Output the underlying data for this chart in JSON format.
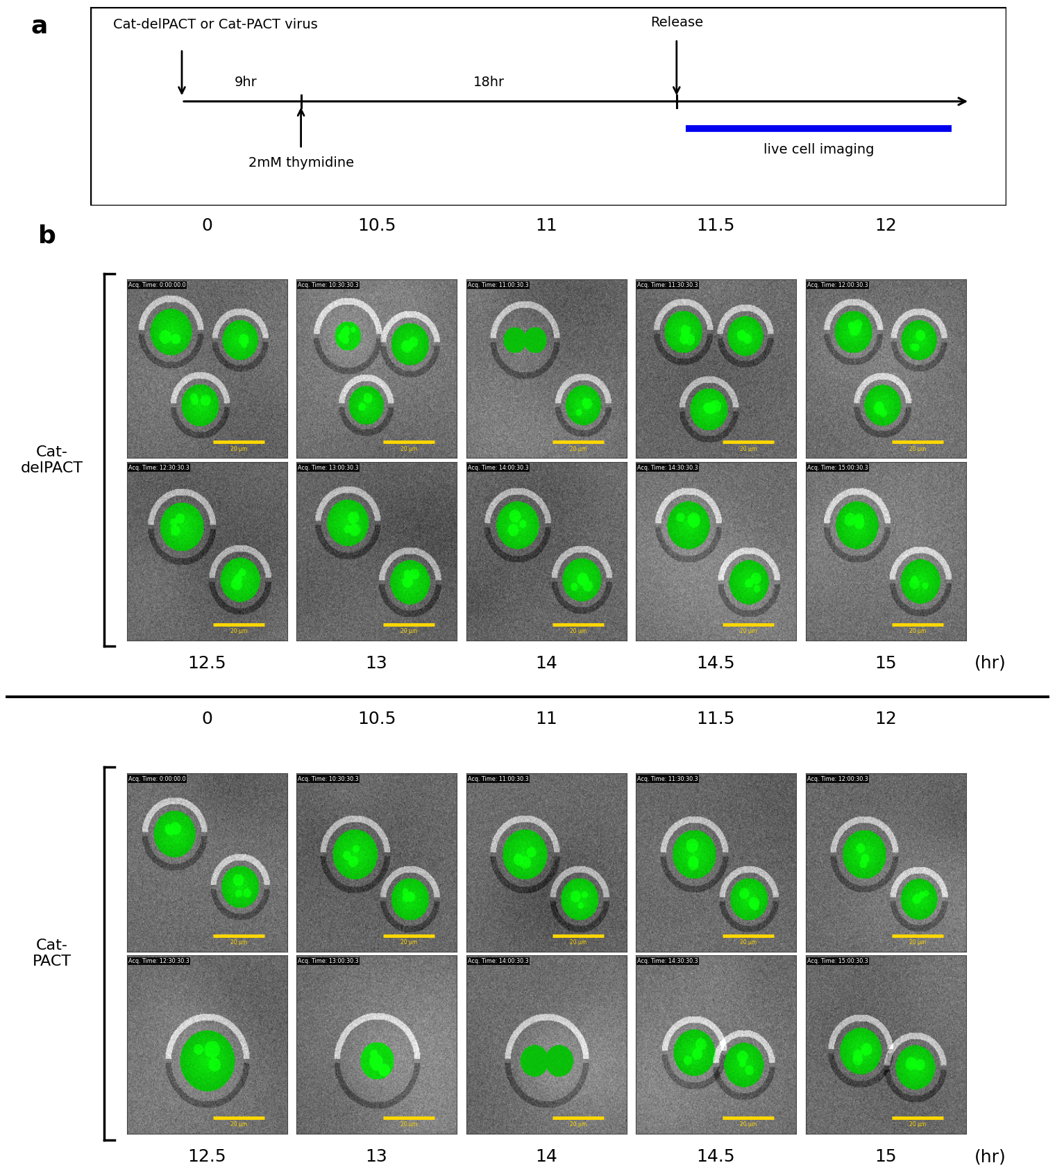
{
  "panel_a": {
    "title_text": "Cat-delPACT or Cat-PACT virus",
    "label_a": "a",
    "thymidine_label": "2mM thymidine",
    "imaging_label": "live cell imaging",
    "blue_bar_color": "#0000EE"
  },
  "panel_b": {
    "label_b": "b",
    "top_col_labels": [
      "0",
      "10.5",
      "11",
      "11.5",
      "12"
    ],
    "bot_col_labels": [
      "12.5",
      "13",
      "14",
      "14.5",
      "15"
    ],
    "hr_label": "(hr)",
    "row1_label": "Cat-\ndelPACT",
    "row2_label": "Cat-\nPACT",
    "acq_times_row1_top": [
      "Acq. Time: 0:00:00.0",
      "Acq. Time: 10:30:30.3",
      "Acq. Time: 11:00:30.3",
      "Acq. Time: 11:30:30.3",
      "Acq. Time: 12:00:30.3"
    ],
    "acq_times_row1_bot": [
      "Acq. Time: 12:30:30.3",
      "Acq. Time: 13:00:30.3",
      "Acq. Time: 14:00:30.3",
      "Acq. Time: 14:30:30.3",
      "Acq. Time: 15:00:30.3"
    ],
    "acq_times_row2_top": [
      "Acq. Time: 0:00:00.0",
      "Acq. Time: 10:30:30.3",
      "Acq. Time: 11:00:30.3",
      "Acq. Time: 11:30:30.3",
      "Acq. Time: 12:00:30.3"
    ],
    "acq_times_row2_bot": [
      "Acq. Time: 12:30:30.3",
      "Acq. Time: 13:00:30.3",
      "Acq. Time: 14:00:30.3",
      "Acq. Time: 14:30:30.3",
      "Acq. Time: 15:00:30.3"
    ],
    "scale_bar_label": "20 μm",
    "scale_bar_color": "#FFD700"
  },
  "bg_color": "#ffffff",
  "text_color": "#000000"
}
